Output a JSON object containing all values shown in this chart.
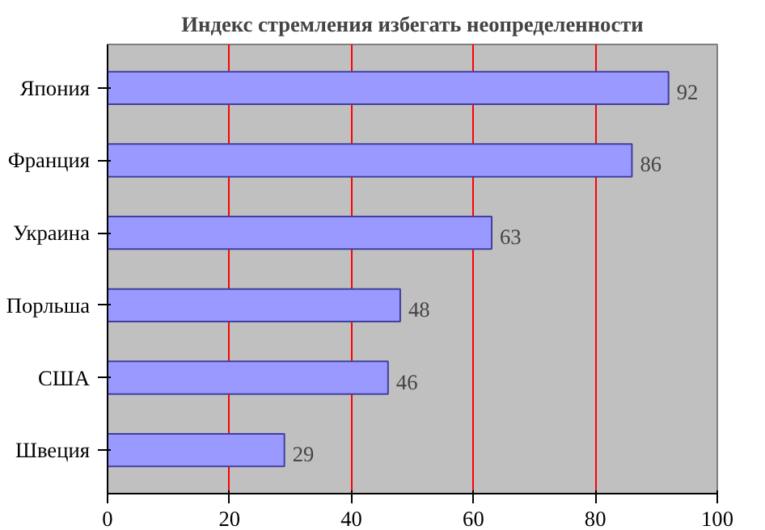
{
  "chart_data": {
    "type": "bar",
    "orientation": "horizontal",
    "title": "Индекс стремления избегать неопределенности",
    "categories": [
      "Япония",
      "Франция",
      "Украина",
      "Порльша",
      "США",
      "Швеция"
    ],
    "values": [
      92,
      86,
      63,
      48,
      46,
      29
    ],
    "color": "#9999ff",
    "xlim": [
      0,
      100
    ],
    "xticks": [
      0,
      20,
      40,
      60,
      80,
      100
    ],
    "grid": "x",
    "data_labels": true
  }
}
